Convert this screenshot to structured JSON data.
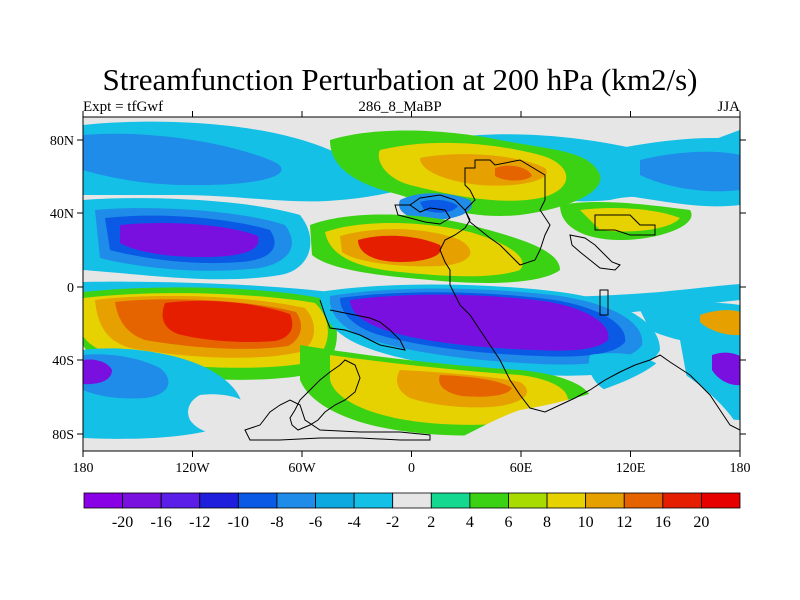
{
  "header": {
    "title": "Streamfunction Perturbation at 200 hPa (km2/s)",
    "left_label": "Expt = tfGwf",
    "center_label": "286_8_MaBP",
    "right_label": "JJA"
  },
  "axes": {
    "lat_ticks": [
      "80N",
      "40N",
      "0",
      "40S",
      "80S"
    ],
    "lon_ticks": [
      "180",
      "120W",
      "60W",
      "0",
      "60E",
      "120E",
      "180"
    ]
  },
  "colorbar": {
    "labels": [
      "-20",
      "-16",
      "-12",
      "-10",
      "-8",
      "-6",
      "-4",
      "-2",
      "2",
      "4",
      "6",
      "8",
      "10",
      "12",
      "16",
      "20"
    ],
    "colors": [
      "#8a00e6",
      "#7a10e0",
      "#5a1ee8",
      "#1e1edc",
      "#0a5ae6",
      "#1e8ce8",
      "#0ca8e0",
      "#14c0e6",
      "#e6e6e6",
      "#14d890",
      "#3cd214",
      "#a8dc00",
      "#e6d200",
      "#e6a000",
      "#e66400",
      "#e61e00",
      "#e60000"
    ]
  },
  "palette": {
    "neutral": "#e6e6e6",
    "cyan": "#14c0e6",
    "lightblue": "#1e8ce8",
    "blue": "#0a5ae6",
    "purple": "#7a10e0",
    "green": "#14d890",
    "yellow": "#e6d200",
    "orange": "#e6a000",
    "red": "#e61e00"
  }
}
